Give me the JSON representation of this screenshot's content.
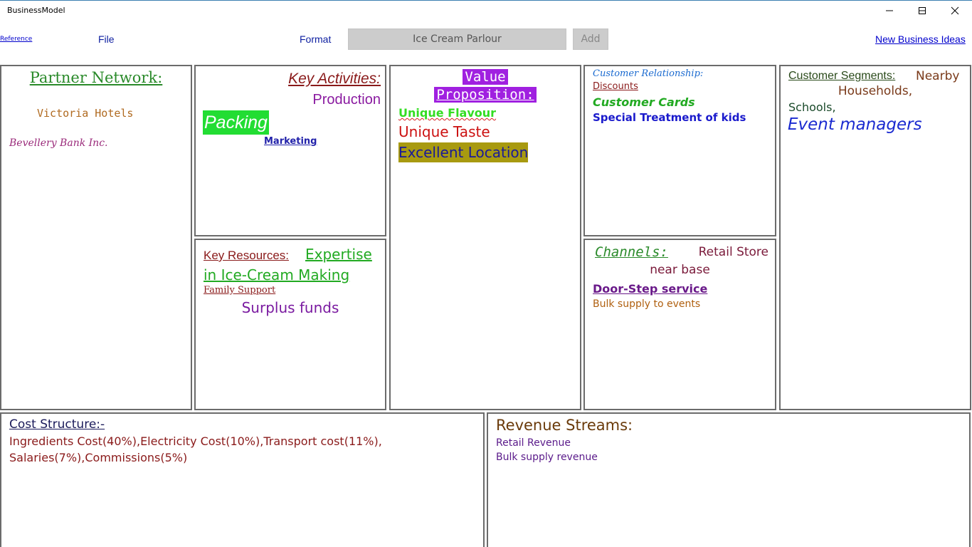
{
  "window": {
    "title": "BusinessModel",
    "controls": [
      "minimize-icon",
      "maximize-icon",
      "close-icon"
    ]
  },
  "toolbar": {
    "reference_link": "Reference",
    "file_menu": "File",
    "format_menu": "Format",
    "business_name_value": "Ice Cream Parlour",
    "add_button": "Add",
    "new_ideas_link": "New Business Ideas"
  },
  "canvas": {
    "partner_network": {
      "heading": "Partner Network:",
      "items": [
        "Victoria Hotels",
        "Bevellery Bank Inc."
      ]
    },
    "key_activities": {
      "heading": "Key Activities:",
      "items": [
        "Production",
        "Packing",
        "Marketing"
      ]
    },
    "key_resources": {
      "heading": "Key Resources:",
      "items": [
        "Expertise",
        "in Ice-Cream Making",
        "Family Support",
        "Surplus funds"
      ]
    },
    "value_proposition": {
      "heading_line1": "Value",
      "heading_line2": "Proposition:",
      "items": [
        "Unique Flavour",
        "Unique Taste",
        "Excellent Location"
      ]
    },
    "customer_relationship": {
      "heading": "Customer Relationship:",
      "items": [
        "Discounts",
        "Customer Cards",
        "Special Treatment of kids"
      ]
    },
    "channels": {
      "heading": "Channels:",
      "items": [
        "Retail Store",
        "near base",
        "Door-Step service",
        "Bulk supply to events"
      ]
    },
    "customer_segments": {
      "heading": "Customer Segments:",
      "items": [
        "Nearby",
        "Households,",
        "Schools,",
        "Event managers"
      ]
    },
    "cost_structure": {
      "heading": "Cost Structure:-",
      "line1": "Ingredients Cost(40%),Electricity Cost(10%),Transport cost(11%),",
      "line2": "Salaries(7%),Commissions(5%)"
    },
    "revenue_streams": {
      "heading": "Revenue Streams:",
      "items": [
        "Retail Revenue",
        "Bulk supply revenue"
      ]
    }
  },
  "colors": {
    "packing_highlight": "#22dd33",
    "value_heading_highlight": "#a020e0",
    "location_highlight": "#a89a10",
    "box_border": "#6b6b6b"
  }
}
